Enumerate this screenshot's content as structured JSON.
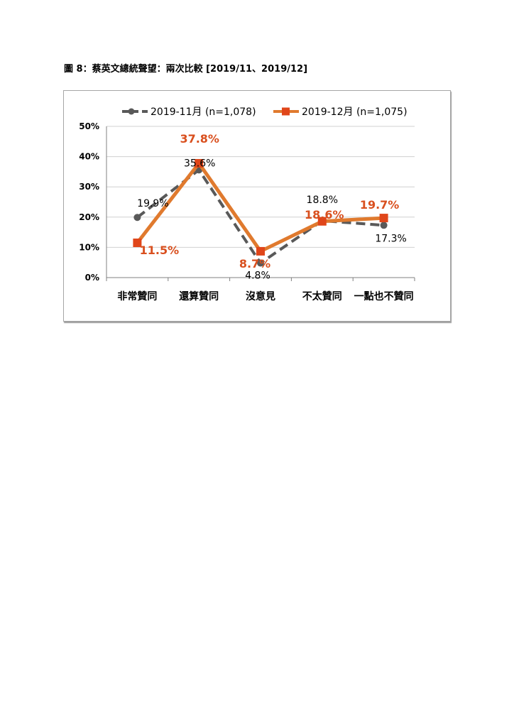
{
  "caption": "圖 8：蔡英文總統聲望：兩次比較 [2019/11、2019/12]",
  "chart_data": {
    "type": "line",
    "categories": [
      "非常贊同",
      "還算贊同",
      "沒意見",
      "不太贊同",
      "一點也不贊同"
    ],
    "ylim": [
      0,
      50
    ],
    "yticks": [
      "0%",
      "10%",
      "20%",
      "30%",
      "40%",
      "50%"
    ],
    "grid": true,
    "legend_position": "top",
    "series": [
      {
        "name": "2019-11月 (n=1,078)",
        "values": [
          19.9,
          35.6,
          4.8,
          18.8,
          17.3
        ],
        "labels": [
          "19.9%",
          "35.6%",
          "4.8%",
          "18.8%",
          "17.3%"
        ],
        "color": "#595959",
        "style": "dashed",
        "marker": "circle"
      },
      {
        "name": "2019-12月 (n=1,075)",
        "values": [
          11.5,
          37.8,
          8.7,
          18.6,
          19.7
        ],
        "labels": [
          "11.5%",
          "37.8%",
          "8.7%",
          "18.6%",
          "19.7%"
        ],
        "color": "#e07a2e",
        "marker_color": "#e0461a",
        "label_color": "#d9501f",
        "style": "solid",
        "marker": "square"
      }
    ]
  }
}
